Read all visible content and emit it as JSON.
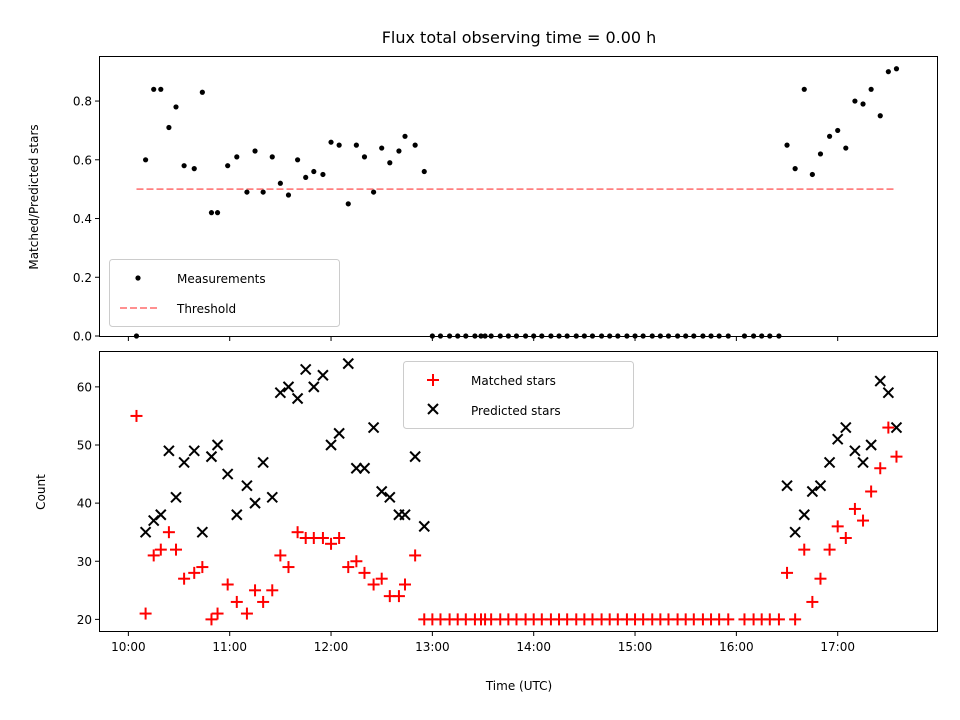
{
  "chart_data": [
    {
      "type": "scatter",
      "title": "Flux total observing time = 0.00 h",
      "xlabel": "",
      "ylabel": "Matched/Predicted stars",
      "xlim": [
        9.72,
        17.98
      ],
      "ylim": [
        0,
        0.95
      ],
      "yticks": [
        "0.0",
        "0.2",
        "0.4",
        "0.6",
        "0.8"
      ],
      "ytick_values": [
        0,
        0.2,
        0.4,
        0.6,
        0.8
      ],
      "xtick_values": [
        10,
        11,
        12,
        13,
        14,
        15,
        16,
        17
      ],
      "grid": false,
      "legend": "lower-left",
      "series": [
        {
          "name": "Measurements",
          "kind": "points",
          "color": "#000000",
          "x": [
            10.08,
            10.17,
            10.25,
            10.32,
            10.4,
            10.47,
            10.55,
            10.65,
            10.73,
            10.82,
            10.88,
            10.98,
            11.07,
            11.17,
            11.25,
            11.33,
            11.42,
            11.5,
            11.58,
            11.67,
            11.75,
            11.83,
            11.92,
            12.0,
            12.08,
            12.17,
            12.25,
            12.33,
            12.42,
            12.5,
            12.58,
            12.67,
            12.73,
            12.83,
            12.92,
            13.0,
            13.08,
            13.17,
            13.25,
            13.33,
            13.42,
            13.48,
            13.52,
            13.58,
            13.67,
            13.75,
            13.83,
            13.92,
            14.0,
            14.08,
            14.17,
            14.25,
            14.33,
            14.42,
            14.5,
            14.58,
            14.67,
            14.75,
            14.83,
            14.92,
            15.0,
            15.08,
            15.17,
            15.25,
            15.33,
            15.42,
            15.5,
            15.58,
            15.67,
            15.75,
            15.83,
            15.92,
            16.08,
            16.17,
            16.25,
            16.33,
            16.42,
            16.5,
            16.58,
            16.67,
            16.75,
            16.83,
            16.92,
            17.0,
            17.08,
            17.17,
            17.25,
            17.33,
            17.42,
            17.5,
            17.58
          ],
          "y": [
            0.0,
            0.6,
            0.84,
            0.84,
            0.71,
            0.78,
            0.58,
            0.57,
            0.83,
            0.42,
            0.42,
            0.58,
            0.61,
            0.49,
            0.63,
            0.49,
            0.61,
            0.52,
            0.48,
            0.6,
            0.54,
            0.56,
            0.55,
            0.66,
            0.65,
            0.45,
            0.65,
            0.61,
            0.49,
            0.64,
            0.59,
            0.63,
            0.68,
            0.65,
            0.56,
            0.0,
            0.0,
            0.0,
            0.0,
            0.0,
            0.0,
            0.0,
            0.0,
            0.0,
            0.0,
            0.0,
            0.0,
            0.0,
            0.0,
            0.0,
            0.0,
            0.0,
            0.0,
            0.0,
            0.0,
            0.0,
            0.0,
            0.0,
            0.0,
            0.0,
            0.0,
            0.0,
            0.0,
            0.0,
            0.0,
            0.0,
            0.0,
            0.0,
            0.0,
            0.0,
            0.0,
            0.0,
            0.0,
            0.0,
            0.0,
            0.0,
            0.0,
            0.65,
            0.57,
            0.84,
            0.55,
            0.62,
            0.68,
            0.7,
            0.64,
            0.8,
            0.79,
            0.84,
            0.75,
            0.9,
            0.91
          ]
        },
        {
          "name": "Threshold",
          "kind": "dashed-line",
          "color": "#ff8080",
          "x": [
            10.08,
            17.58
          ],
          "y": [
            0.5,
            0.5
          ]
        }
      ]
    },
    {
      "type": "scatter",
      "title": "",
      "xlabel": "Time (UTC)",
      "ylabel": "Count",
      "xlim": [
        9.72,
        17.98
      ],
      "ylim": [
        18,
        66
      ],
      "yticks": [
        "20",
        "30",
        "40",
        "50",
        "60"
      ],
      "ytick_values": [
        20,
        30,
        40,
        50,
        60
      ],
      "xticks": [
        "10:00",
        "11:00",
        "12:00",
        "13:00",
        "14:00",
        "15:00",
        "16:00",
        "17:00"
      ],
      "xtick_values": [
        10,
        11,
        12,
        13,
        14,
        15,
        16,
        17
      ],
      "grid": false,
      "legend": "top-center",
      "series": [
        {
          "name": "Matched stars",
          "kind": "plus",
          "color": "#ff0000",
          "x": [
            10.08,
            10.17,
            10.25,
            10.32,
            10.4,
            10.47,
            10.55,
            10.65,
            10.73,
            10.82,
            10.88,
            10.98,
            11.07,
            11.17,
            11.25,
            11.33,
            11.42,
            11.5,
            11.58,
            11.67,
            11.75,
            11.83,
            11.92,
            12.0,
            12.08,
            12.17,
            12.25,
            12.33,
            12.42,
            12.5,
            12.58,
            12.67,
            12.73,
            12.83,
            12.92,
            13.0,
            13.08,
            13.17,
            13.25,
            13.33,
            13.42,
            13.48,
            13.52,
            13.58,
            13.67,
            13.75,
            13.83,
            13.92,
            14.0,
            14.08,
            14.17,
            14.25,
            14.33,
            14.42,
            14.5,
            14.58,
            14.67,
            14.75,
            14.83,
            14.92,
            15.0,
            15.08,
            15.17,
            15.25,
            15.33,
            15.42,
            15.5,
            15.58,
            15.67,
            15.75,
            15.83,
            15.92,
            16.08,
            16.17,
            16.25,
            16.33,
            16.42,
            16.5,
            16.58,
            16.67,
            16.75,
            16.83,
            16.92,
            17.0,
            17.08,
            17.17,
            17.25,
            17.33,
            17.42,
            17.5,
            17.58
          ],
          "y": [
            55,
            21,
            31,
            32,
            35,
            32,
            27,
            28,
            29,
            20,
            21,
            26,
            23,
            21,
            25,
            23,
            25,
            31,
            29,
            35,
            34,
            34,
            34,
            33,
            34,
            29,
            30,
            28,
            26,
            27,
            24,
            24,
            26,
            31,
            20,
            20,
            20,
            20,
            20,
            20,
            20,
            20,
            20,
            20,
            20,
            20,
            20,
            20,
            20,
            20,
            20,
            20,
            20,
            20,
            20,
            20,
            20,
            20,
            20,
            20,
            20,
            20,
            20,
            20,
            20,
            20,
            20,
            20,
            20,
            20,
            20,
            20,
            20,
            20,
            20,
            20,
            20,
            28,
            20,
            32,
            23,
            27,
            32,
            36,
            34,
            39,
            37,
            42,
            46,
            53,
            48
          ]
        },
        {
          "name": "Predicted stars",
          "kind": "x",
          "color": "#000000",
          "x": [
            10.17,
            10.25,
            10.32,
            10.4,
            10.47,
            10.55,
            10.65,
            10.73,
            10.82,
            10.88,
            10.98,
            11.07,
            11.17,
            11.25,
            11.33,
            11.42,
            11.5,
            11.58,
            11.67,
            11.75,
            11.83,
            11.92,
            12.0,
            12.08,
            12.17,
            12.25,
            12.33,
            12.42,
            12.5,
            12.58,
            12.67,
            12.73,
            12.83,
            12.92,
            16.5,
            16.58,
            16.67,
            16.75,
            16.83,
            16.92,
            17.0,
            17.08,
            17.17,
            17.25,
            17.33,
            17.42,
            17.5,
            17.58
          ],
          "y": [
            35,
            37,
            38,
            49,
            41,
            47,
            49,
            35,
            48,
            50,
            45,
            38,
            43,
            40,
            47,
            41,
            59,
            60,
            58,
            63,
            60,
            62,
            50,
            52,
            64,
            46,
            46,
            53,
            42,
            41,
            38,
            38,
            48,
            36,
            43,
            35,
            38,
            42,
            43,
            47,
            51,
            53,
            49,
            47,
            50,
            61,
            59,
            53
          ]
        }
      ]
    }
  ]
}
